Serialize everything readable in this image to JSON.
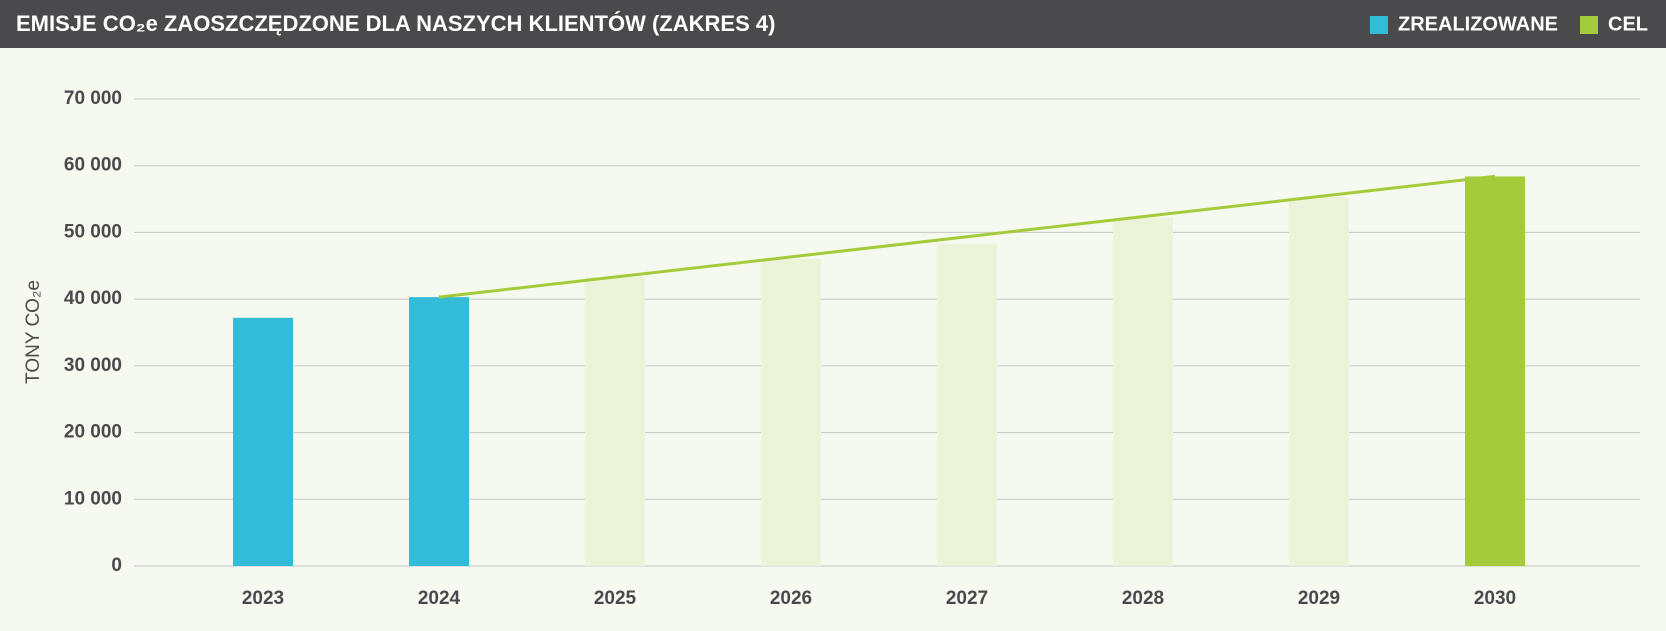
{
  "chart_data": {
    "type": "bar",
    "title": "EMISJE CO₂e ZAOSZCZĘDZONE DLA NASZYCH KLIENTÓW (ZAKRES 4)",
    "y_label": "TONY CO₂e",
    "categories": [
      "2023",
      "2024",
      "2025",
      "2026",
      "2027",
      "2028",
      "2029",
      "2030"
    ],
    "series": [
      {
        "name": "ZREALIZOWANE",
        "color": "#33bcd8",
        "values": [
          37200,
          40300,
          null,
          null,
          null,
          null,
          null,
          null
        ]
      },
      {
        "name": "CEL",
        "color": "#a4cc3a",
        "faded_color": "#ebf4d8",
        "values": [
          null,
          null,
          43300,
          46000,
          48300,
          52200,
          55300,
          58400
        ]
      }
    ],
    "trend": {
      "color": "#a4cc3a",
      "values": [
        null,
        40300,
        43317,
        46333,
        49350,
        52367,
        55383,
        58400
      ]
    },
    "ylim": [
      0,
      70000
    ],
    "yticks": [
      {
        "value": 0,
        "label": "0"
      },
      {
        "value": 10000,
        "label": "10 000"
      },
      {
        "value": 20000,
        "label": "20 000"
      },
      {
        "value": 30000,
        "label": "30 000"
      },
      {
        "value": 40000,
        "label": "40 000"
      },
      {
        "value": 50000,
        "label": "50 000"
      },
      {
        "value": 60000,
        "label": "60 000"
      },
      {
        "value": 70000,
        "label": "70 000"
      }
    ],
    "grid": true,
    "legend": "top-right"
  }
}
